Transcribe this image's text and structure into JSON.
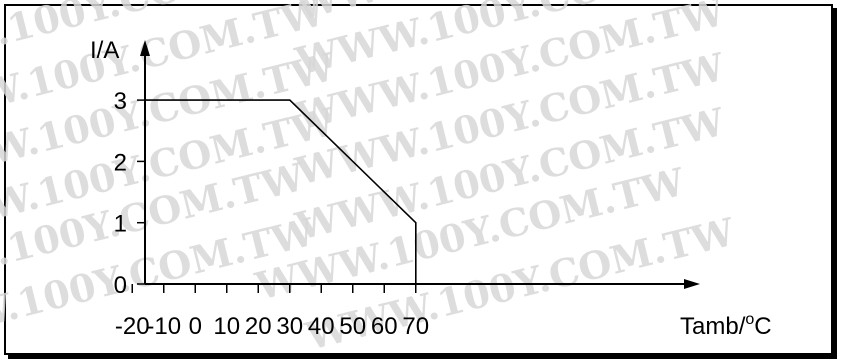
{
  "watermark_text": "WWW.100Y.COM.TW",
  "chart_data": {
    "type": "line",
    "x": [
      -25,
      30,
      70,
      70
    ],
    "y": [
      3,
      3,
      1,
      0
    ],
    "xticks": [
      -20,
      -10,
      0,
      10,
      20,
      30,
      40,
      50,
      60,
      70
    ],
    "yticks": [
      0,
      1,
      2,
      3
    ],
    "xtick_labels": [
      "-20",
      "-10",
      "0",
      "10",
      "20",
      "30",
      "40",
      "50",
      "60",
      "70"
    ],
    "ytick_labels": [
      "0",
      "1",
      "2",
      "3"
    ],
    "xlim": [
      -25,
      75
    ],
    "ylim": [
      0,
      3.8
    ],
    "xlabel": "Tamb/",
    "xlabel_degree": "o",
    "xlabel_unit": "C",
    "ylabel": "I/A",
    "line_color": "#000000",
    "grid": false
  }
}
